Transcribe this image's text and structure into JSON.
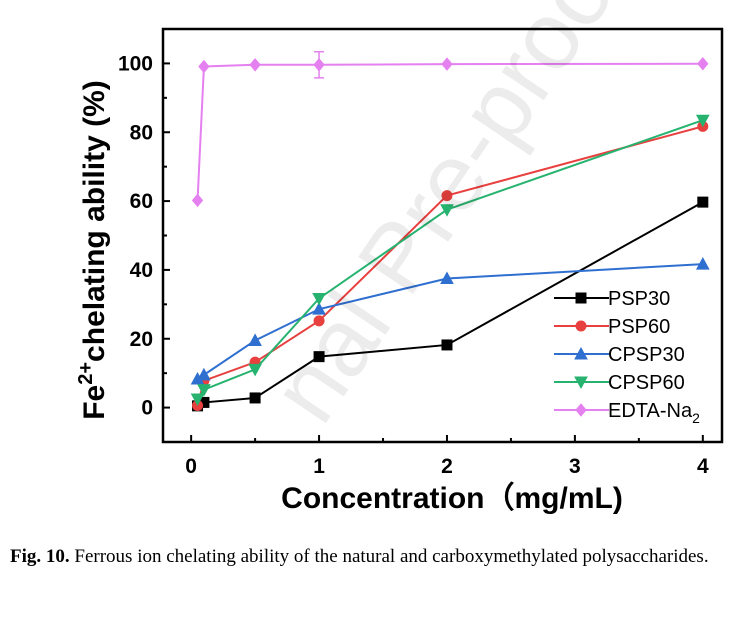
{
  "chart_data": {
    "type": "line",
    "xlabel": "Concentration（mg/mL)",
    "ylabel_main": "Fe",
    "ylabel_sup": "2+",
    "ylabel_rest": "chelating ability (%)",
    "x_ticks": [
      "0",
      "1",
      "2",
      "3",
      "4"
    ],
    "y_ticks": [
      "0",
      "20",
      "40",
      "60",
      "80",
      "100"
    ],
    "xlim": [
      -0.22,
      4.15
    ],
    "ylim": [
      -10,
      110
    ],
    "legend_position": "bottom-right",
    "series": [
      {
        "name": "PSP30",
        "color": "#000000",
        "marker": "square",
        "x": [
          0.05,
          0.1,
          0.5,
          1,
          2,
          4
        ],
        "y": [
          0.5,
          1.5,
          2.8,
          14.8,
          18.2,
          59.7
        ]
      },
      {
        "name": "PSP60",
        "color": "#e8403f",
        "marker": "circle",
        "x": [
          0.05,
          0.1,
          0.5,
          1,
          2,
          4
        ],
        "y": [
          0.6,
          7.8,
          13.2,
          25.2,
          61.6,
          81.7
        ]
      },
      {
        "name": "CPSP30",
        "color": "#2e6fd0",
        "marker": "triangle-up",
        "x": [
          0.05,
          0.1,
          0.5,
          1,
          2,
          4
        ],
        "y": [
          8.3,
          9.5,
          19.5,
          28.6,
          37.5,
          41.7
        ]
      },
      {
        "name": "CPSP60",
        "color": "#27b36f",
        "marker": "triangle-down",
        "x": [
          0.05,
          0.1,
          0.5,
          1,
          2,
          4
        ],
        "y": [
          2.5,
          5.2,
          11.1,
          31.7,
          57.5,
          83.5
        ]
      },
      {
        "name_main": "EDTA-Na",
        "name_sub": "2",
        "color": "#e580f0",
        "marker": "diamond",
        "x": [
          0.05,
          0.1,
          0.5,
          1,
          2,
          4
        ],
        "y": [
          60.2,
          99.1,
          99.6,
          99.6,
          99.8,
          99.9
        ],
        "err": [
          0,
          0,
          0,
          3.8,
          0,
          0
        ]
      }
    ]
  },
  "caption": {
    "label": "Fig. 10.",
    "text": " Ferrous ion chelating ability of the natural and carboxymethylated polysaccharides."
  },
  "watermark": "nal Pre-proof"
}
